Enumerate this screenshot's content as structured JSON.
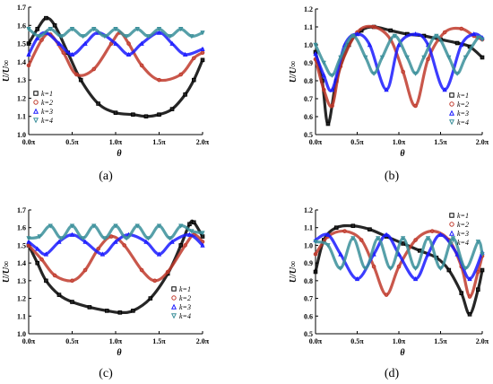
{
  "chart_data": [
    {
      "id": "a",
      "type": "scatter",
      "panel_label": "(a)",
      "xlabel": "θ",
      "ylabel": "U/U∞",
      "xlim": [
        0,
        2
      ],
      "ylim": [
        1.0,
        1.7
      ],
      "xticks": [
        "0.0π",
        "0.5π",
        "1.0π",
        "1.5π",
        "2.0π"
      ],
      "yticks": [
        "1.0",
        "1.1",
        "1.2",
        "1.3",
        "1.4",
        "1.5",
        "1.6",
        "1.7"
      ],
      "legend": "bottom-left",
      "series": [
        {
          "name": "k=1",
          "color": "#000000",
          "marker": "square",
          "x": [
            0,
            0.1,
            0.2,
            0.3,
            0.45,
            0.6,
            0.8,
            1.0,
            1.2,
            1.35,
            1.5,
            1.65,
            1.8,
            1.9,
            2.0
          ],
          "y": [
            1.5,
            1.58,
            1.64,
            1.6,
            1.45,
            1.3,
            1.17,
            1.12,
            1.11,
            1.1,
            1.11,
            1.14,
            1.22,
            1.3,
            1.41
          ]
        },
        {
          "name": "k=2",
          "color": "#c0392b",
          "marker": "circle",
          "x": [
            0,
            0.15,
            0.25,
            0.4,
            0.55,
            0.75,
            0.95,
            1.05,
            1.15,
            1.3,
            1.5,
            1.75,
            1.9,
            2.0
          ],
          "y": [
            1.38,
            1.52,
            1.55,
            1.45,
            1.33,
            1.36,
            1.5,
            1.56,
            1.5,
            1.38,
            1.3,
            1.33,
            1.42,
            1.45
          ]
        },
        {
          "name": "k=3",
          "color": "#1a1aff",
          "marker": "triangle-up",
          "x": [
            0,
            0.1,
            0.2,
            0.35,
            0.5,
            0.65,
            0.8,
            1.0,
            1.15,
            1.3,
            1.5,
            1.65,
            1.8,
            2.0
          ],
          "y": [
            1.44,
            1.53,
            1.56,
            1.5,
            1.44,
            1.5,
            1.56,
            1.5,
            1.44,
            1.5,
            1.56,
            1.5,
            1.44,
            1.47
          ]
        },
        {
          "name": "k=4",
          "color": "#3a8f9a",
          "marker": "triangle-down",
          "x": [
            0,
            0.125,
            0.25,
            0.375,
            0.5,
            0.625,
            0.75,
            0.875,
            1.0,
            1.125,
            1.25,
            1.375,
            1.5,
            1.625,
            1.75,
            1.875,
            2.0
          ],
          "y": [
            1.58,
            1.54,
            1.58,
            1.54,
            1.58,
            1.54,
            1.58,
            1.54,
            1.58,
            1.54,
            1.58,
            1.54,
            1.58,
            1.54,
            1.58,
            1.54,
            1.56
          ]
        }
      ]
    },
    {
      "id": "b",
      "type": "scatter",
      "panel_label": "(b)",
      "xlabel": "θ",
      "ylabel": "U/U∞",
      "xlim": [
        0,
        2
      ],
      "ylim": [
        0.5,
        1.2
      ],
      "xticks": [
        "0.0π",
        "0.5π",
        "1.0π",
        "1.5π",
        "2.0π"
      ],
      "yticks": [
        "0.5",
        "0.6",
        "0.7",
        "0.8",
        "0.9",
        "1.0",
        "1.1",
        "1.2"
      ],
      "legend": "bottom-right",
      "series": [
        {
          "name": "k=1",
          "color": "#000000",
          "marker": "square",
          "x": [
            0,
            0.08,
            0.15,
            0.25,
            0.4,
            0.55,
            0.7,
            0.9,
            1.1,
            1.3,
            1.5,
            1.7,
            1.85,
            2.0
          ],
          "y": [
            0.96,
            0.8,
            0.56,
            0.8,
            1.0,
            1.08,
            1.1,
            1.08,
            1.06,
            1.05,
            1.03,
            1.01,
            0.99,
            0.93
          ]
        },
        {
          "name": "k=2",
          "color": "#c0392b",
          "marker": "circle",
          "x": [
            0,
            0.1,
            0.2,
            0.3,
            0.5,
            0.7,
            0.9,
            1.05,
            1.2,
            1.35,
            1.55,
            1.75,
            1.9,
            2.0
          ],
          "y": [
            0.92,
            0.75,
            0.66,
            0.88,
            1.07,
            1.1,
            1.03,
            0.85,
            0.66,
            0.92,
            1.07,
            1.09,
            1.05,
            1.03
          ]
        },
        {
          "name": "k=3",
          "color": "#1a1aff",
          "marker": "triangle-up",
          "x": [
            0,
            0.1,
            0.2,
            0.35,
            0.5,
            0.65,
            0.85,
            1.0,
            1.2,
            1.35,
            1.55,
            1.75,
            1.9,
            2.0
          ],
          "y": [
            0.95,
            0.83,
            0.75,
            1.0,
            1.06,
            1.0,
            0.75,
            1.0,
            1.06,
            1.0,
            0.75,
            1.0,
            1.06,
            1.04
          ]
        },
        {
          "name": "k=4",
          "color": "#3a8f9a",
          "marker": "triangle-down",
          "x": [
            0,
            0.1,
            0.2,
            0.3,
            0.45,
            0.6,
            0.7,
            0.8,
            0.95,
            1.1,
            1.2,
            1.3,
            1.45,
            1.6,
            1.7,
            1.8,
            1.95,
            2.0
          ],
          "y": [
            1.0,
            0.9,
            0.83,
            0.93,
            1.05,
            0.93,
            0.84,
            0.93,
            1.05,
            0.93,
            0.84,
            0.93,
            1.05,
            0.93,
            0.84,
            0.93,
            1.04,
            1.03
          ]
        }
      ]
    },
    {
      "id": "c",
      "type": "scatter",
      "panel_label": "(c)",
      "xlabel": "θ",
      "ylabel": "U/U∞",
      "xlim": [
        0,
        2
      ],
      "ylim": [
        1.0,
        1.7
      ],
      "xticks": [
        "0.0π",
        "0.5π",
        "1.0π",
        "1.5π",
        "2.0π"
      ],
      "yticks": [
        "1.0",
        "1.1",
        "1.2",
        "1.3",
        "1.4",
        "1.5",
        "1.6",
        "1.7"
      ],
      "legend": "bottom-right",
      "series": [
        {
          "name": "k=1",
          "color": "#000000",
          "marker": "square",
          "x": [
            0,
            0.1,
            0.2,
            0.35,
            0.5,
            0.7,
            0.9,
            1.05,
            1.2,
            1.4,
            1.6,
            1.75,
            1.85,
            1.9,
            2.0
          ],
          "y": [
            1.5,
            1.4,
            1.3,
            1.22,
            1.18,
            1.15,
            1.13,
            1.12,
            1.13,
            1.2,
            1.34,
            1.5,
            1.62,
            1.63,
            1.55
          ]
        },
        {
          "name": "k=2",
          "color": "#c0392b",
          "marker": "circle",
          "x": [
            0,
            0.15,
            0.3,
            0.5,
            0.65,
            0.8,
            0.95,
            1.1,
            1.3,
            1.45,
            1.6,
            1.8,
            1.9,
            2.0
          ],
          "y": [
            1.5,
            1.42,
            1.33,
            1.3,
            1.36,
            1.48,
            1.55,
            1.5,
            1.36,
            1.3,
            1.35,
            1.5,
            1.56,
            1.52
          ]
        },
        {
          "name": "k=3",
          "color": "#1a1aff",
          "marker": "triangle-up",
          "x": [
            0,
            0.1,
            0.2,
            0.35,
            0.5,
            0.65,
            0.85,
            1.0,
            1.15,
            1.35,
            1.5,
            1.65,
            1.85,
            2.0
          ],
          "y": [
            1.52,
            1.48,
            1.45,
            1.52,
            1.56,
            1.52,
            1.45,
            1.52,
            1.56,
            1.52,
            1.45,
            1.52,
            1.56,
            1.5
          ]
        },
        {
          "name": "k=4",
          "color": "#3a8f9a",
          "marker": "triangle-down",
          "x": [
            0,
            0.125,
            0.25,
            0.375,
            0.5,
            0.625,
            0.75,
            0.875,
            1.0,
            1.125,
            1.25,
            1.375,
            1.5,
            1.625,
            1.75,
            1.875,
            2.0
          ],
          "y": [
            1.54,
            1.55,
            1.61,
            1.54,
            1.61,
            1.54,
            1.61,
            1.54,
            1.61,
            1.54,
            1.61,
            1.54,
            1.61,
            1.54,
            1.61,
            1.58,
            1.57
          ]
        }
      ]
    },
    {
      "id": "d",
      "type": "scatter",
      "panel_label": "(d)",
      "xlabel": "θ",
      "ylabel": "U/U∞",
      "xlim": [
        0,
        2
      ],
      "ylim": [
        0.5,
        1.2
      ],
      "xticks": [
        "0.0π",
        "0.5π",
        "1.0π",
        "1.5π",
        "2.0π"
      ],
      "yticks": [
        "0.5",
        "0.6",
        "0.7",
        "0.8",
        "0.9",
        "1.0",
        "1.1",
        "1.2"
      ],
      "legend": "top-right",
      "series": [
        {
          "name": "k=1",
          "color": "#000000",
          "marker": "square",
          "x": [
            0,
            0.1,
            0.25,
            0.45,
            0.65,
            0.85,
            1.05,
            1.25,
            1.45,
            1.6,
            1.75,
            1.85,
            1.95,
            2.0
          ],
          "y": [
            0.85,
            1.03,
            1.1,
            1.11,
            1.09,
            1.05,
            1.01,
            0.97,
            0.93,
            0.86,
            0.73,
            0.61,
            0.75,
            0.86
          ]
        },
        {
          "name": "k=2",
          "color": "#c0392b",
          "marker": "circle",
          "x": [
            0,
            0.15,
            0.35,
            0.55,
            0.7,
            0.85,
            1.0,
            1.2,
            1.4,
            1.6,
            1.75,
            1.85,
            1.95,
            2.0
          ],
          "y": [
            0.95,
            1.05,
            1.08,
            1.03,
            0.88,
            0.72,
            0.88,
            1.03,
            1.08,
            1.03,
            0.88,
            0.71,
            0.85,
            0.94
          ]
        },
        {
          "name": "k=3",
          "color": "#1a1aff",
          "marker": "triangle-up",
          "x": [
            0,
            0.15,
            0.3,
            0.5,
            0.7,
            0.85,
            1.0,
            1.2,
            1.35,
            1.5,
            1.7,
            1.85,
            2.0
          ],
          "y": [
            1.03,
            1.06,
            0.95,
            0.81,
            0.95,
            1.06,
            0.95,
            0.81,
            0.95,
            1.06,
            0.95,
            0.81,
            0.96
          ]
        },
        {
          "name": "k=4",
          "color": "#3a8f9a",
          "marker": "triangle-down",
          "x": [
            0,
            0.15,
            0.3,
            0.45,
            0.6,
            0.75,
            0.9,
            1.05,
            1.2,
            1.35,
            1.5,
            1.65,
            1.8,
            1.95,
            2.0
          ],
          "y": [
            1.02,
            1.0,
            0.87,
            1.04,
            0.87,
            1.04,
            0.87,
            1.04,
            0.87,
            1.04,
            0.87,
            1.04,
            0.87,
            1.02,
            0.95
          ]
        }
      ]
    }
  ]
}
